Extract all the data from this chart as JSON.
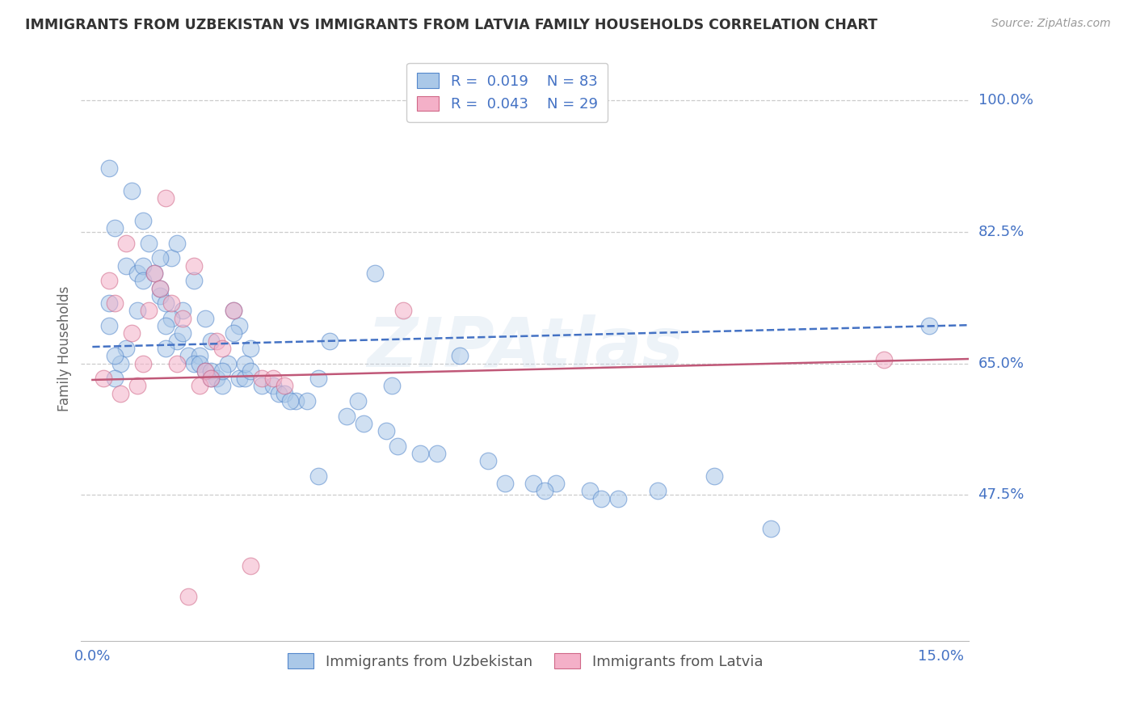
{
  "title": "IMMIGRANTS FROM UZBEKISTAN VS IMMIGRANTS FROM LATVIA FAMILY HOUSEHOLDS CORRELATION CHART",
  "source": "Source: ZipAtlas.com",
  "ylabel": "Family Households",
  "ytick_values": [
    0.475,
    0.65,
    0.825,
    1.0
  ],
  "ytick_labels": [
    "47.5%",
    "65.0%",
    "82.5%",
    "100.0%"
  ],
  "xtick_values": [
    0.0,
    0.05,
    0.1,
    0.15
  ],
  "xtick_labels": [
    "0.0%",
    "",
    "",
    "15.0%"
  ],
  "xlim": [
    -0.002,
    0.155
  ],
  "ylim": [
    0.28,
    1.06
  ],
  "legend_R1": "0.019",
  "legend_N1": "83",
  "legend_R2": "0.043",
  "legend_N2": "29",
  "color_uzbekistan": "#aac8e8",
  "color_uzbekistan_edge": "#5588cc",
  "color_latvia": "#f4b0c8",
  "color_latvia_edge": "#d06888",
  "line_color_uzbekistan": "#4472c4",
  "line_color_latvia": "#c05878",
  "background_color": "#ffffff",
  "watermark": "ZIPAtlas",
  "title_fontsize": 12.5,
  "tick_fontsize": 13,
  "label_fontsize": 12,
  "legend_fontsize": 13,
  "uzbekistan_x": [
    0.003,
    0.007,
    0.003,
    0.004,
    0.003,
    0.006,
    0.005,
    0.004,
    0.004,
    0.006,
    0.008,
    0.009,
    0.01,
    0.008,
    0.009,
    0.009,
    0.011,
    0.012,
    0.012,
    0.014,
    0.015,
    0.013,
    0.016,
    0.014,
    0.013,
    0.018,
    0.015,
    0.016,
    0.013,
    0.012,
    0.017,
    0.019,
    0.018,
    0.019,
    0.02,
    0.021,
    0.02,
    0.022,
    0.021,
    0.021,
    0.023,
    0.024,
    0.025,
    0.023,
    0.026,
    0.027,
    0.028,
    0.026,
    0.025,
    0.027,
    0.028,
    0.03,
    0.032,
    0.033,
    0.034,
    0.036,
    0.038,
    0.04,
    0.035,
    0.042,
    0.045,
    0.048,
    0.05,
    0.052,
    0.054,
    0.058,
    0.061,
    0.065,
    0.07,
    0.073,
    0.078,
    0.082,
    0.088,
    0.093,
    0.1,
    0.11,
    0.053,
    0.047,
    0.08,
    0.09,
    0.12,
    0.148,
    0.04
  ],
  "uzbekistan_y": [
    0.91,
    0.88,
    0.73,
    0.83,
    0.7,
    0.67,
    0.65,
    0.66,
    0.63,
    0.78,
    0.77,
    0.84,
    0.81,
    0.72,
    0.78,
    0.76,
    0.77,
    0.74,
    0.75,
    0.79,
    0.81,
    0.73,
    0.72,
    0.71,
    0.7,
    0.76,
    0.68,
    0.69,
    0.67,
    0.79,
    0.66,
    0.66,
    0.65,
    0.65,
    0.64,
    0.64,
    0.71,
    0.63,
    0.63,
    0.68,
    0.62,
    0.65,
    0.72,
    0.64,
    0.63,
    0.63,
    0.67,
    0.7,
    0.69,
    0.65,
    0.64,
    0.62,
    0.62,
    0.61,
    0.61,
    0.6,
    0.6,
    0.63,
    0.6,
    0.68,
    0.58,
    0.57,
    0.77,
    0.56,
    0.54,
    0.53,
    0.53,
    0.66,
    0.52,
    0.49,
    0.49,
    0.49,
    0.48,
    0.47,
    0.48,
    0.5,
    0.62,
    0.6,
    0.48,
    0.47,
    0.43,
    0.7,
    0.5
  ],
  "latvia_x": [
    0.002,
    0.003,
    0.004,
    0.005,
    0.006,
    0.007,
    0.008,
    0.009,
    0.01,
    0.011,
    0.012,
    0.013,
    0.014,
    0.015,
    0.016,
    0.018,
    0.02,
    0.022,
    0.025,
    0.028,
    0.03,
    0.032,
    0.034,
    0.017,
    0.019,
    0.021,
    0.023,
    0.14,
    0.055
  ],
  "latvia_y": [
    0.63,
    0.76,
    0.73,
    0.61,
    0.81,
    0.69,
    0.62,
    0.65,
    0.72,
    0.77,
    0.75,
    0.87,
    0.73,
    0.65,
    0.71,
    0.78,
    0.64,
    0.68,
    0.72,
    0.38,
    0.63,
    0.63,
    0.62,
    0.34,
    0.62,
    0.63,
    0.67,
    0.655,
    0.72
  ]
}
